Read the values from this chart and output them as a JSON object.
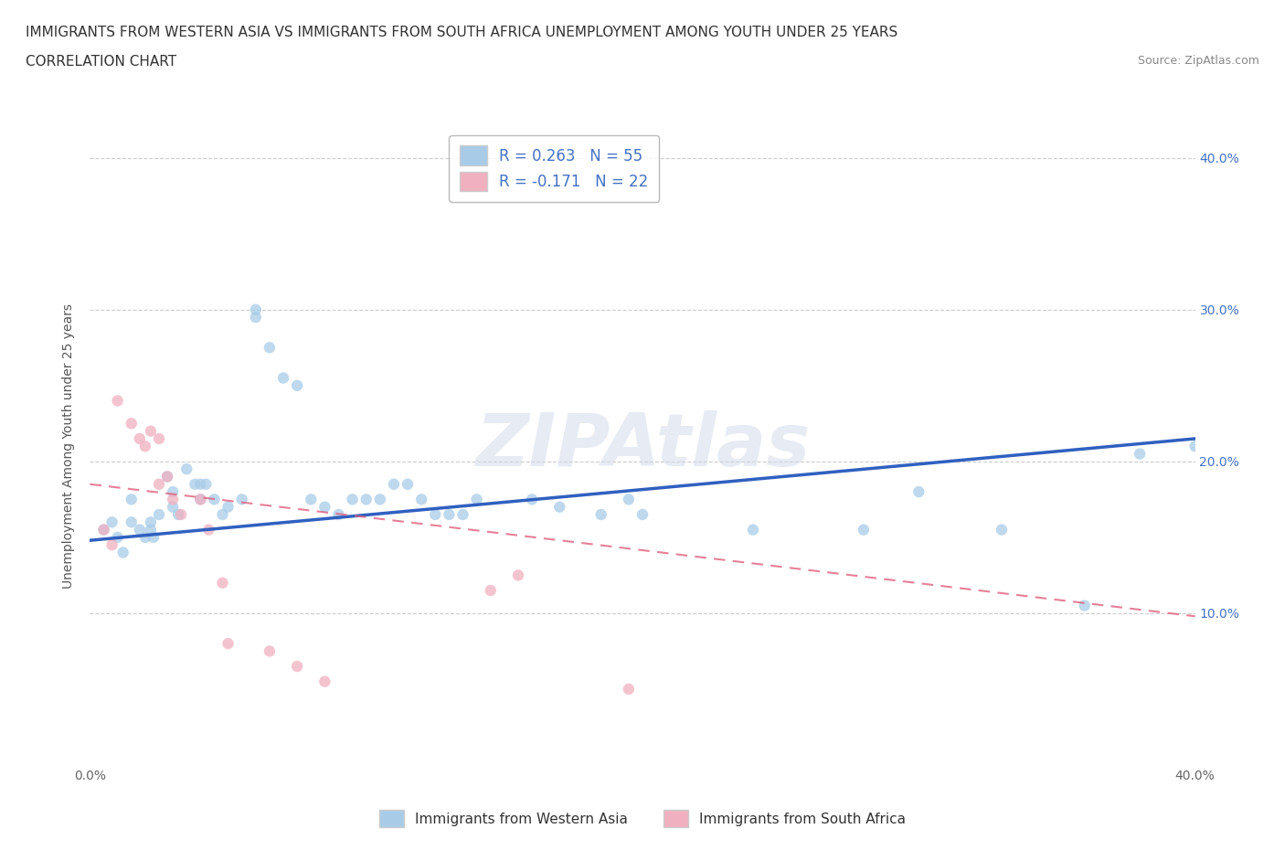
{
  "title_line1": "IMMIGRANTS FROM WESTERN ASIA VS IMMIGRANTS FROM SOUTH AFRICA UNEMPLOYMENT AMONG YOUTH UNDER 25 YEARS",
  "title_line2": "CORRELATION CHART",
  "source": "Source: ZipAtlas.com",
  "ylabel": "Unemployment Among Youth under 25 years",
  "xlim": [
    0.0,
    0.4
  ],
  "ylim": [
    0.0,
    0.42
  ],
  "x_ticks": [
    0.0,
    0.1,
    0.2,
    0.3,
    0.4
  ],
  "x_tick_labels": [
    "0.0%",
    "",
    "",
    "",
    "40.0%"
  ],
  "y_ticks": [
    0.1,
    0.2,
    0.3,
    0.4
  ],
  "y_tick_labels_right": [
    "10.0%",
    "20.0%",
    "30.0%",
    "40.0%"
  ],
  "color_blue": "#a8cce8",
  "color_pink": "#f0b0c0",
  "color_line_blue": "#3060c0",
  "color_line_pink": "#e06080",
  "R_blue": 0.263,
  "N_blue": 55,
  "R_pink": -0.171,
  "N_pink": 22,
  "legend_label_blue": "Immigrants from Western Asia",
  "legend_label_pink": "Immigrants from South Africa",
  "watermark": "ZIPAtlas",
  "blue_scatter": [
    [
      0.005,
      0.155
    ],
    [
      0.008,
      0.16
    ],
    [
      0.01,
      0.15
    ],
    [
      0.012,
      0.14
    ],
    [
      0.015,
      0.175
    ],
    [
      0.015,
      0.16
    ],
    [
      0.018,
      0.155
    ],
    [
      0.02,
      0.15
    ],
    [
      0.022,
      0.16
    ],
    [
      0.022,
      0.155
    ],
    [
      0.023,
      0.15
    ],
    [
      0.025,
      0.165
    ],
    [
      0.028,
      0.19
    ],
    [
      0.03,
      0.18
    ],
    [
      0.03,
      0.17
    ],
    [
      0.032,
      0.165
    ],
    [
      0.035,
      0.195
    ],
    [
      0.038,
      0.185
    ],
    [
      0.04,
      0.185
    ],
    [
      0.04,
      0.175
    ],
    [
      0.042,
      0.185
    ],
    [
      0.045,
      0.175
    ],
    [
      0.048,
      0.165
    ],
    [
      0.05,
      0.17
    ],
    [
      0.055,
      0.175
    ],
    [
      0.06,
      0.3
    ],
    [
      0.06,
      0.295
    ],
    [
      0.065,
      0.275
    ],
    [
      0.07,
      0.255
    ],
    [
      0.075,
      0.25
    ],
    [
      0.08,
      0.175
    ],
    [
      0.085,
      0.17
    ],
    [
      0.09,
      0.165
    ],
    [
      0.095,
      0.175
    ],
    [
      0.1,
      0.175
    ],
    [
      0.105,
      0.175
    ],
    [
      0.11,
      0.185
    ],
    [
      0.115,
      0.185
    ],
    [
      0.12,
      0.175
    ],
    [
      0.125,
      0.165
    ],
    [
      0.13,
      0.165
    ],
    [
      0.135,
      0.165
    ],
    [
      0.14,
      0.175
    ],
    [
      0.16,
      0.175
    ],
    [
      0.17,
      0.17
    ],
    [
      0.185,
      0.165
    ],
    [
      0.195,
      0.175
    ],
    [
      0.2,
      0.165
    ],
    [
      0.24,
      0.155
    ],
    [
      0.28,
      0.155
    ],
    [
      0.3,
      0.18
    ],
    [
      0.33,
      0.155
    ],
    [
      0.36,
      0.105
    ],
    [
      0.38,
      0.205
    ],
    [
      0.4,
      0.21
    ]
  ],
  "pink_scatter": [
    [
      0.005,
      0.155
    ],
    [
      0.008,
      0.145
    ],
    [
      0.01,
      0.24
    ],
    [
      0.015,
      0.225
    ],
    [
      0.018,
      0.215
    ],
    [
      0.02,
      0.21
    ],
    [
      0.022,
      0.22
    ],
    [
      0.025,
      0.215
    ],
    [
      0.025,
      0.185
    ],
    [
      0.028,
      0.19
    ],
    [
      0.03,
      0.175
    ],
    [
      0.033,
      0.165
    ],
    [
      0.04,
      0.175
    ],
    [
      0.043,
      0.155
    ],
    [
      0.048,
      0.12
    ],
    [
      0.05,
      0.08
    ],
    [
      0.065,
      0.075
    ],
    [
      0.075,
      0.065
    ],
    [
      0.085,
      0.055
    ],
    [
      0.145,
      0.115
    ],
    [
      0.155,
      0.125
    ],
    [
      0.195,
      0.05
    ]
  ],
  "title_fontsize": 11,
  "axis_label_fontsize": 10,
  "tick_fontsize": 10,
  "legend_fontsize": 12
}
